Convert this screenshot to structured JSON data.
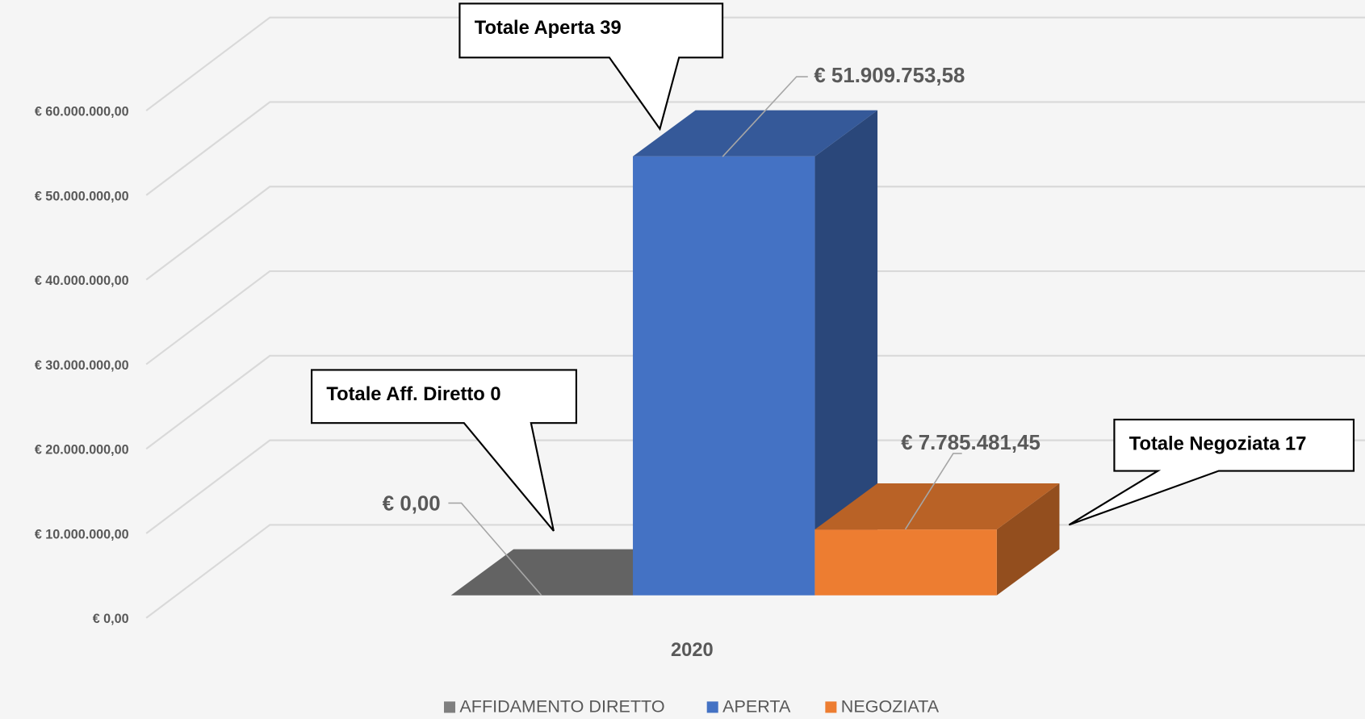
{
  "chart_data": {
    "type": "bar3d",
    "categories": [
      "2020"
    ],
    "series": [
      {
        "name": "AFFIDAMENTO DIRETTO",
        "color": "#7f7f7f",
        "values": [
          0
        ],
        "value_labels": [
          "€ 0,00"
        ]
      },
      {
        "name": "APERTA",
        "color": "#4472c4",
        "values": [
          51909753.58
        ],
        "value_labels": [
          "€ 51.909.753,58"
        ]
      },
      {
        "name": "NEGOZIATA",
        "color": "#ed7d31",
        "values": [
          7785481.45
        ],
        "value_labels": [
          "€ 7.785.481,45"
        ]
      }
    ],
    "ylim": [
      0,
      60000000
    ],
    "yticks": [
      {
        "value": 0,
        "label": "€ 0,00"
      },
      {
        "value": 10000000,
        "label": "€ 10.000.000,00"
      },
      {
        "value": 20000000,
        "label": "€ 20.000.000,00"
      },
      {
        "value": 30000000,
        "label": "€ 30.000.000,00"
      },
      {
        "value": 40000000,
        "label": "€ 40.000.000,00"
      },
      {
        "value": 50000000,
        "label": "€ 50.000.000,00"
      },
      {
        "value": 60000000,
        "label": "€ 60.000.000,00"
      }
    ],
    "grid": true,
    "legend": "bottom",
    "annotations": [
      "Totale Aff. Diretto 0",
      "Totale Aperta 39",
      "Totale Negoziata 17"
    ]
  }
}
